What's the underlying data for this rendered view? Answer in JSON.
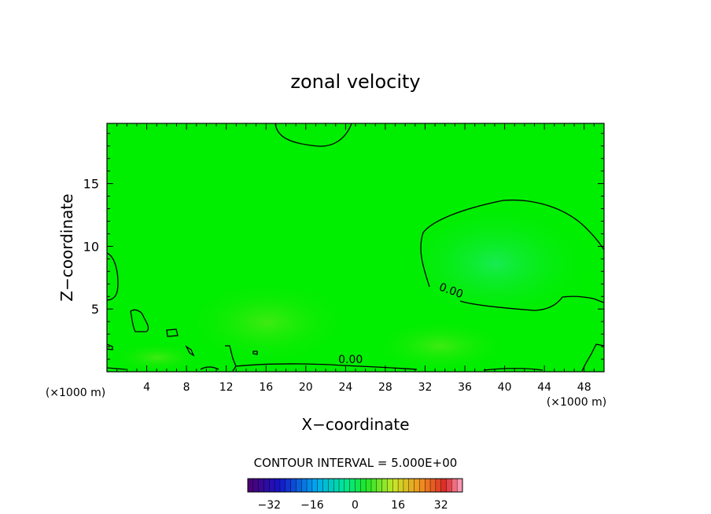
{
  "chart_data": {
    "type": "heatmap",
    "title": "zonal velocity",
    "xlabel": "X−coordinate",
    "ylabel": "Z−coordinate",
    "x_unit": "(×1000 m)",
    "xlim": [
      0,
      50
    ],
    "ylim": [
      0,
      19.8
    ],
    "x_ticks": [
      4,
      8,
      12,
      16,
      20,
      24,
      28,
      32,
      36,
      40,
      44,
      48
    ],
    "y_ticks": [
      5,
      10,
      15
    ],
    "contour_labels": [
      {
        "text": "0.00",
        "x": 34.5,
        "y": 6.2
      },
      {
        "text": "0.00",
        "x": 24.5,
        "y": 0.7
      }
    ],
    "contour_level": 0.0,
    "field_description_value_range": [
      -32,
      32
    ],
    "contour_interval_text": "CONTOUR INTERVAL = 5.000E+00",
    "colorbar": {
      "ticks": [
        "−32",
        "−16",
        "0",
        "16",
        "32"
      ],
      "tick_values": [
        -32,
        -16,
        0,
        16,
        32
      ],
      "range": [
        -40,
        40
      ],
      "steps": 40
    },
    "background_color": "#00ee00",
    "contour_color": "#000000"
  }
}
